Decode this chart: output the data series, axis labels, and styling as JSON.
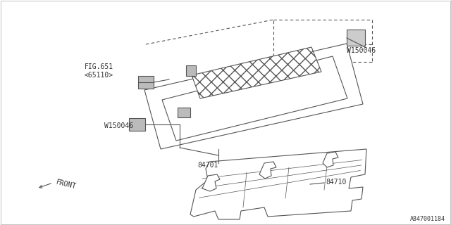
{
  "bg_color": "#ffffff",
  "line_color": "#555555",
  "text_color": "#333333",
  "part_number_bottom_right": "A847001184",
  "labels": {
    "fig651": "FIG.651",
    "fig651_sub": "<65110>",
    "w150046_top": "W150046",
    "w150046_bottom": "W150046",
    "part_84701": "84701",
    "part_84710": "84710",
    "front": "FRONT"
  },
  "figsize": [
    6.4,
    3.2
  ],
  "dpi": 100
}
